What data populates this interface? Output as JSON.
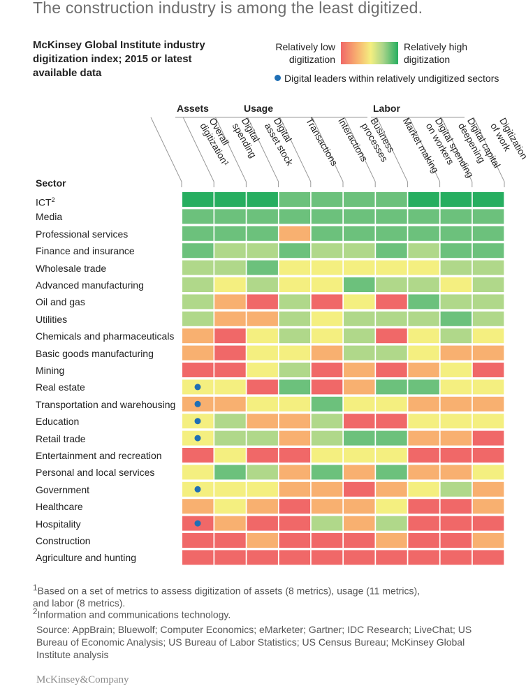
{
  "title": "The construction industry is among the least digitized.",
  "subtitle": "McKinsey Global Institute industry\ndigitization index; 2015 or latest\navailable data",
  "legend": {
    "low": "Relatively low\ndigitization",
    "high": "Relatively high\ndigitization",
    "dot_label": "Digital leaders within relatively undigitized sectors",
    "colors": {
      "1": "#f06868",
      "2": "#f8b070",
      "3": "#f4ef80",
      "4": "#b0d88a",
      "5": "#6cc17c",
      "6": "#27ae60",
      "dot": "#1f6fb5"
    }
  },
  "chart_data": {
    "type": "heatmap",
    "title": "McKinsey Global Institute industry digitization index; 2015 or latest available data",
    "scale": "1 = relatively low digitization, 6 = relatively high digitization",
    "row_header": "Sector",
    "groups": [
      {
        "label": "Assets",
        "columns": [
          1,
          2
        ]
      },
      {
        "label": "Usage",
        "columns": [
          3,
          4,
          5,
          6
        ]
      },
      {
        "label": "Labor",
        "columns": [
          7,
          8,
          9
        ]
      }
    ],
    "columns": [
      [
        "Overall",
        "digitization¹"
      ],
      [
        "Digital",
        "spending"
      ],
      [
        "Digital",
        "asset stock"
      ],
      [
        "Transactions"
      ],
      [
        "Interactions"
      ],
      [
        "Business",
        "processes"
      ],
      [
        "Market making"
      ],
      [
        "Digital spending",
        "on workers"
      ],
      [
        "Digital capital",
        "deepening"
      ],
      [
        "Digitization",
        "of work"
      ]
    ],
    "rows": [
      {
        "sector": "ICT",
        "sup": "2",
        "values": [
          6,
          6,
          6,
          5,
          5,
          5,
          5,
          6,
          6,
          6
        ],
        "leader": false
      },
      {
        "sector": "Media",
        "values": [
          5,
          5,
          5,
          5,
          5,
          5,
          5,
          5,
          5,
          5
        ],
        "leader": false
      },
      {
        "sector": "Professional services",
        "values": [
          5,
          5,
          5,
          2,
          5,
          5,
          5,
          5,
          5,
          5
        ],
        "leader": false
      },
      {
        "sector": "Finance and insurance",
        "values": [
          5,
          4,
          4,
          5,
          4,
          4,
          5,
          4,
          5,
          5
        ],
        "leader": false
      },
      {
        "sector": "Wholesale trade",
        "values": [
          4,
          4,
          5,
          3,
          3,
          3,
          3,
          3,
          4,
          4
        ],
        "leader": false
      },
      {
        "sector": "Advanced manufacturing",
        "values": [
          4,
          3,
          4,
          3,
          3,
          5,
          4,
          4,
          3,
          4
        ],
        "leader": false
      },
      {
        "sector": "Oil and gas",
        "values": [
          4,
          2,
          1,
          4,
          1,
          3,
          1,
          5,
          4,
          4
        ],
        "leader": false
      },
      {
        "sector": "Utilities",
        "values": [
          4,
          2,
          2,
          4,
          3,
          4,
          4,
          4,
          5,
          4
        ],
        "leader": false
      },
      {
        "sector": "Chemicals and pharmaceuticals",
        "values": [
          2,
          1,
          3,
          4,
          3,
          4,
          1,
          3,
          4,
          3
        ],
        "leader": false
      },
      {
        "sector": "Basic goods manufacturing",
        "values": [
          2,
          1,
          3,
          3,
          2,
          4,
          4,
          3,
          2,
          2
        ],
        "leader": false
      },
      {
        "sector": "Mining",
        "values": [
          1,
          1,
          3,
          4,
          1,
          2,
          1,
          2,
          3,
          1
        ],
        "leader": false
      },
      {
        "sector": "Real estate",
        "values": [
          3,
          3,
          1,
          5,
          1,
          2,
          5,
          5,
          3,
          3
        ],
        "leader": true
      },
      {
        "sector": "Transportation and warehousing",
        "values": [
          2,
          2,
          3,
          3,
          5,
          3,
          3,
          2,
          2,
          2
        ],
        "leader": true
      },
      {
        "sector": "Education",
        "values": [
          3,
          4,
          2,
          2,
          4,
          1,
          1,
          3,
          3,
          3
        ],
        "leader": true
      },
      {
        "sector": "Retail trade",
        "values": [
          3,
          4,
          4,
          2,
          4,
          5,
          5,
          2,
          2,
          1
        ],
        "leader": true
      },
      {
        "sector": "Entertainment and recreation",
        "values": [
          1,
          3,
          1,
          1,
          3,
          3,
          3,
          1,
          1,
          1
        ],
        "leader": false
      },
      {
        "sector": "Personal and local services",
        "values": [
          3,
          5,
          4,
          2,
          5,
          2,
          5,
          2,
          2,
          3
        ],
        "leader": false
      },
      {
        "sector": "Government",
        "values": [
          3,
          3,
          3,
          2,
          2,
          1,
          2,
          3,
          4,
          2
        ],
        "leader": true
      },
      {
        "sector": "Healthcare",
        "values": [
          2,
          3,
          2,
          1,
          2,
          2,
          3,
          1,
          1,
          2
        ],
        "leader": false
      },
      {
        "sector": "Hospitality",
        "values": [
          1,
          2,
          1,
          1,
          4,
          2,
          4,
          1,
          1,
          1
        ],
        "leader": true
      },
      {
        "sector": "Construction",
        "values": [
          1,
          1,
          2,
          1,
          1,
          1,
          2,
          1,
          1,
          2
        ],
        "leader": false
      },
      {
        "sector": "Agriculture and hunting",
        "values": [
          1,
          1,
          1,
          1,
          1,
          1,
          1,
          1,
          1,
          1
        ],
        "leader": false
      }
    ]
  },
  "footnotes": [
    {
      "sup": "1",
      "text": "Based on a set of metrics to assess digitization of assets (8 metrics), usage (11 metrics),\nand labor (8 metrics)."
    },
    {
      "sup": "2",
      "text": "Information and communications technology."
    }
  ],
  "source": "Source: AppBrain; Bluewolf; Computer Economics; eMarketer; Gartner; IDC Research; LiveChat; US Bureau of Economic Analysis; US Bureau of Labor Statistics; US Census Bureau; McKinsey Global Institute analysis",
  "brand": "McKinsey&Company"
}
